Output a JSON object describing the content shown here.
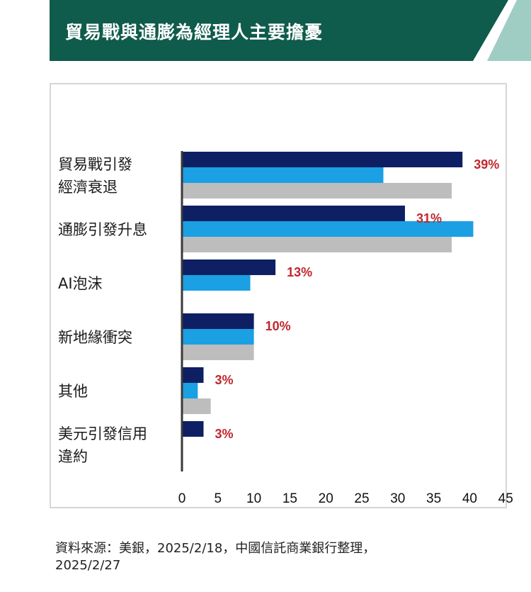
{
  "header": {
    "title": "貿易戰與通膨為經理人主要擔憂",
    "colors": {
      "banner": "#0f5b4c",
      "accent_stripe": "#9fcdc4"
    }
  },
  "chart_data": {
    "type": "bar",
    "orientation": "horizontal",
    "title": "",
    "xlabel": "",
    "ylabel": "",
    "xlim": [
      0,
      45
    ],
    "x_ticks": [
      "0",
      "5",
      "10",
      "15",
      "20",
      "25",
      "30",
      "35",
      "40",
      "45"
    ],
    "categories": [
      [
        "貿易戰引發",
        "經濟衰退"
      ],
      [
        "通膨引發升息"
      ],
      [
        "AI泡沫"
      ],
      [
        "新地緣衝突"
      ],
      [
        "其他"
      ],
      [
        "美元引發信用",
        "違約"
      ]
    ],
    "series": [
      {
        "color": "#0e1f63",
        "values": [
          39,
          31,
          13,
          10,
          3,
          3
        ]
      },
      {
        "color": "#1aa0e3",
        "values": [
          28,
          40.5,
          9.5,
          10,
          2.2,
          null
        ]
      },
      {
        "color": "#bdbdbd",
        "values": [
          37.5,
          37.5,
          null,
          10,
          4,
          null
        ]
      }
    ],
    "data_labels": [
      "39%",
      "31%",
      "13%",
      "10%",
      "3%",
      "3%"
    ],
    "grid": false,
    "legend": "none"
  },
  "footer": {
    "source_line1": "資料來源：美銀，2025/2/18，中國信託商業銀行整理，",
    "source_line2": "2025/2/27"
  }
}
